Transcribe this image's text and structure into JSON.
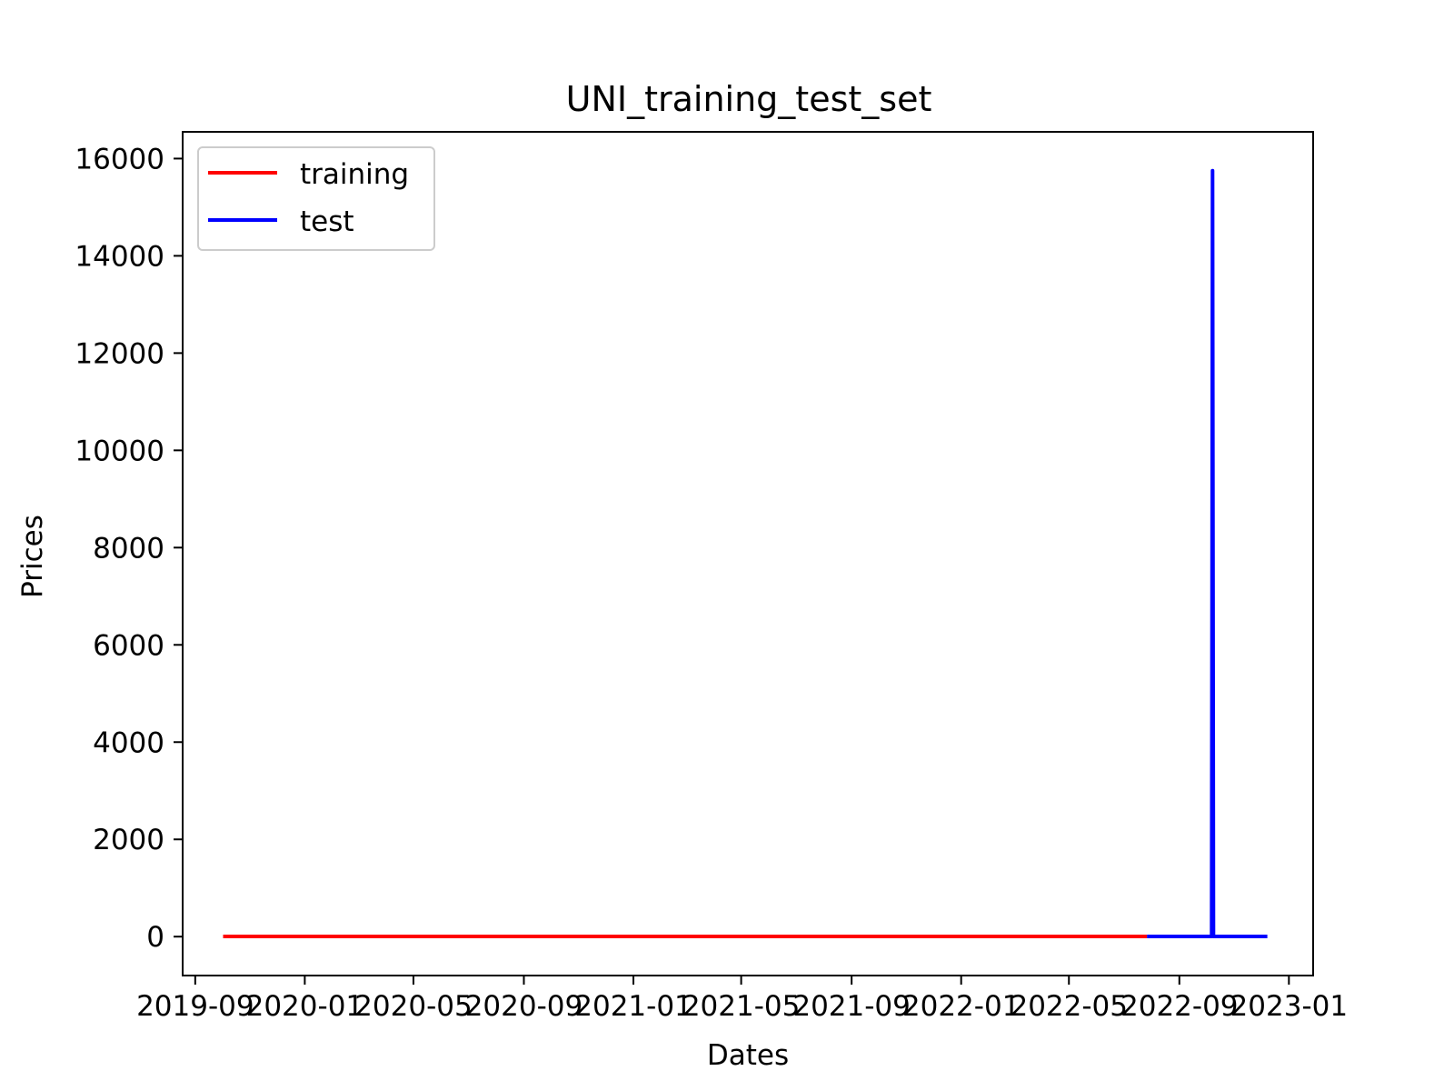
{
  "chart_data": {
    "type": "line",
    "title": "UNI_training_test_set",
    "xlabel": "Dates",
    "ylabel": "Prices",
    "xlim": [
      "2019-08-18",
      "2023-01-28"
    ],
    "ylim": [
      -800,
      16550
    ],
    "x_ticks": [
      "2019-09",
      "2020-01",
      "2020-05",
      "2020-09",
      "2021-01",
      "2021-05",
      "2021-09",
      "2022-01",
      "2022-05",
      "2022-09",
      "2023-01"
    ],
    "y_ticks": [
      0,
      2000,
      4000,
      6000,
      8000,
      10000,
      12000,
      14000,
      16000
    ],
    "grid": false,
    "legend_position": "top-left",
    "series": [
      {
        "name": "training",
        "color": "#ff0000",
        "points": [
          [
            "2019-10-02",
            3
          ],
          [
            "2020-03-01",
            3
          ],
          [
            "2020-08-01",
            3
          ],
          [
            "2021-01-01",
            3
          ],
          [
            "2021-06-01",
            3
          ],
          [
            "2021-11-01",
            3
          ],
          [
            "2022-04-01",
            3
          ],
          [
            "2022-07-27",
            3
          ]
        ]
      },
      {
        "name": "test",
        "color": "#0000ff",
        "points": [
          [
            "2022-07-27",
            3
          ],
          [
            "2022-09-15",
            3
          ],
          [
            "2022-10-07",
            3
          ],
          [
            "2022-10-08",
            15750
          ],
          [
            "2022-10-09",
            3
          ],
          [
            "2022-11-01",
            3
          ],
          [
            "2022-12-08",
            3
          ]
        ]
      }
    ]
  }
}
